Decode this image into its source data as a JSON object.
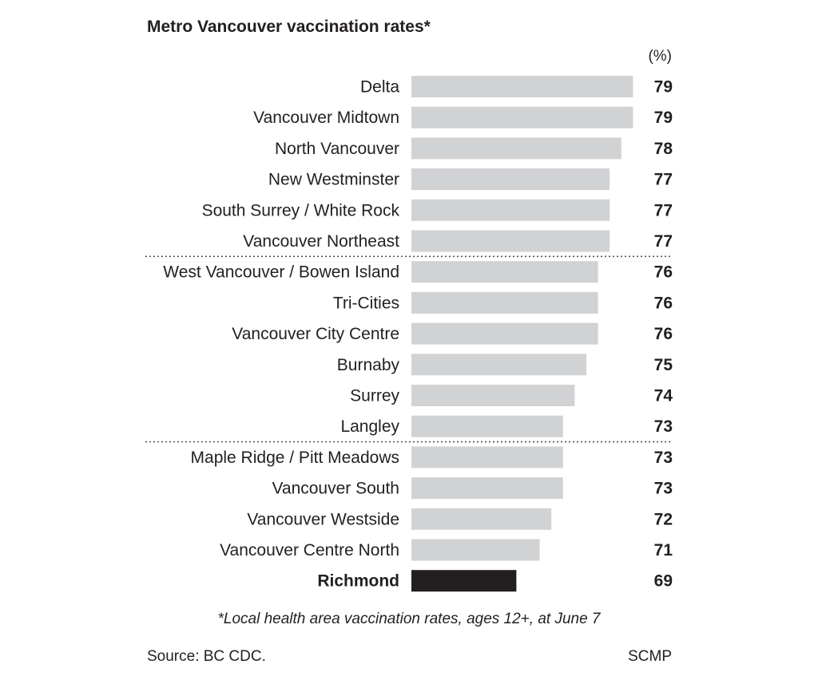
{
  "title": "Metro Vancouver vaccination rates*",
  "unit": "(%)",
  "note": "*Local health area vaccination rates, ages 12+, at June 7",
  "source": "Source: BC CDC.",
  "credit": "SCMP",
  "chart_data": {
    "type": "bar",
    "orientation": "horizontal",
    "title": "Metro Vancouver vaccination rates*",
    "unit": "(%)",
    "categories": [
      "Delta",
      "Vancouver Midtown",
      "North Vancouver",
      "New Westminster",
      "South Surrey / White Rock",
      "Vancouver Northeast",
      "West Vancouver / Bowen Island",
      "Tri-Cities",
      "Vancouver City Centre",
      "Burnaby",
      "Surrey",
      "Langley",
      "Maple Ridge / Pitt Meadows",
      "Vancouver South",
      "Vancouver Westside",
      "Vancouver Centre North",
      "Richmond"
    ],
    "values": [
      79,
      79,
      78,
      77,
      77,
      77,
      76,
      76,
      76,
      75,
      74,
      73,
      73,
      73,
      72,
      71,
      69
    ],
    "highlight": "Richmond",
    "colors": {
      "bar": "#d1d2d4",
      "highlight": "#231f20",
      "text": "#231f20",
      "divider": "#555555"
    },
    "dividers_after": [
      "Vancouver Northeast",
      "Langley"
    ],
    "grid": false,
    "legend": "none"
  }
}
